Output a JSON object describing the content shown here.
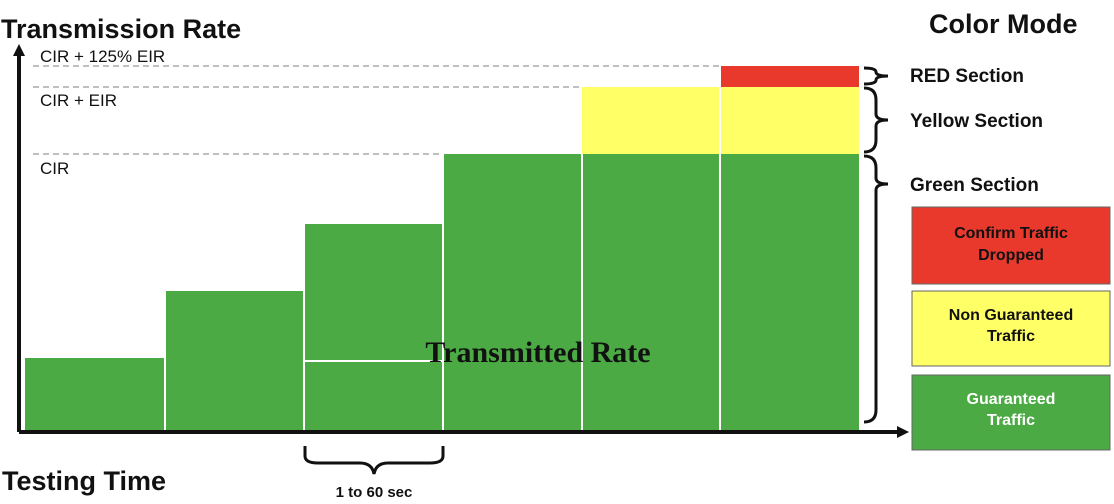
{
  "titles": {
    "y_axis": "Transmission Rate",
    "x_axis": "Testing Time",
    "color_mode": "Color Mode"
  },
  "levels": {
    "cir_125": "CIR + 125% EIR",
    "cir_eir": "CIR + EIR",
    "cir": "CIR"
  },
  "sections": {
    "red": "RED Section",
    "yellow": "Yellow Section",
    "green": "Green Section"
  },
  "legend": {
    "red_line1": "Confirm Traffic",
    "red_line2": "Dropped",
    "yellow_line1": "Non Guaranteed",
    "yellow_line2": "Traffic",
    "green_line1": "Guaranteed",
    "green_line2": "Traffic"
  },
  "center_label": "Transmitted Rate",
  "interval_label": "1 to 60 sec",
  "colors": {
    "green": "#4caa45",
    "yellow": "#ffff66",
    "red": "#e8392c",
    "axis": "#111111",
    "dashed": "#999999"
  }
}
